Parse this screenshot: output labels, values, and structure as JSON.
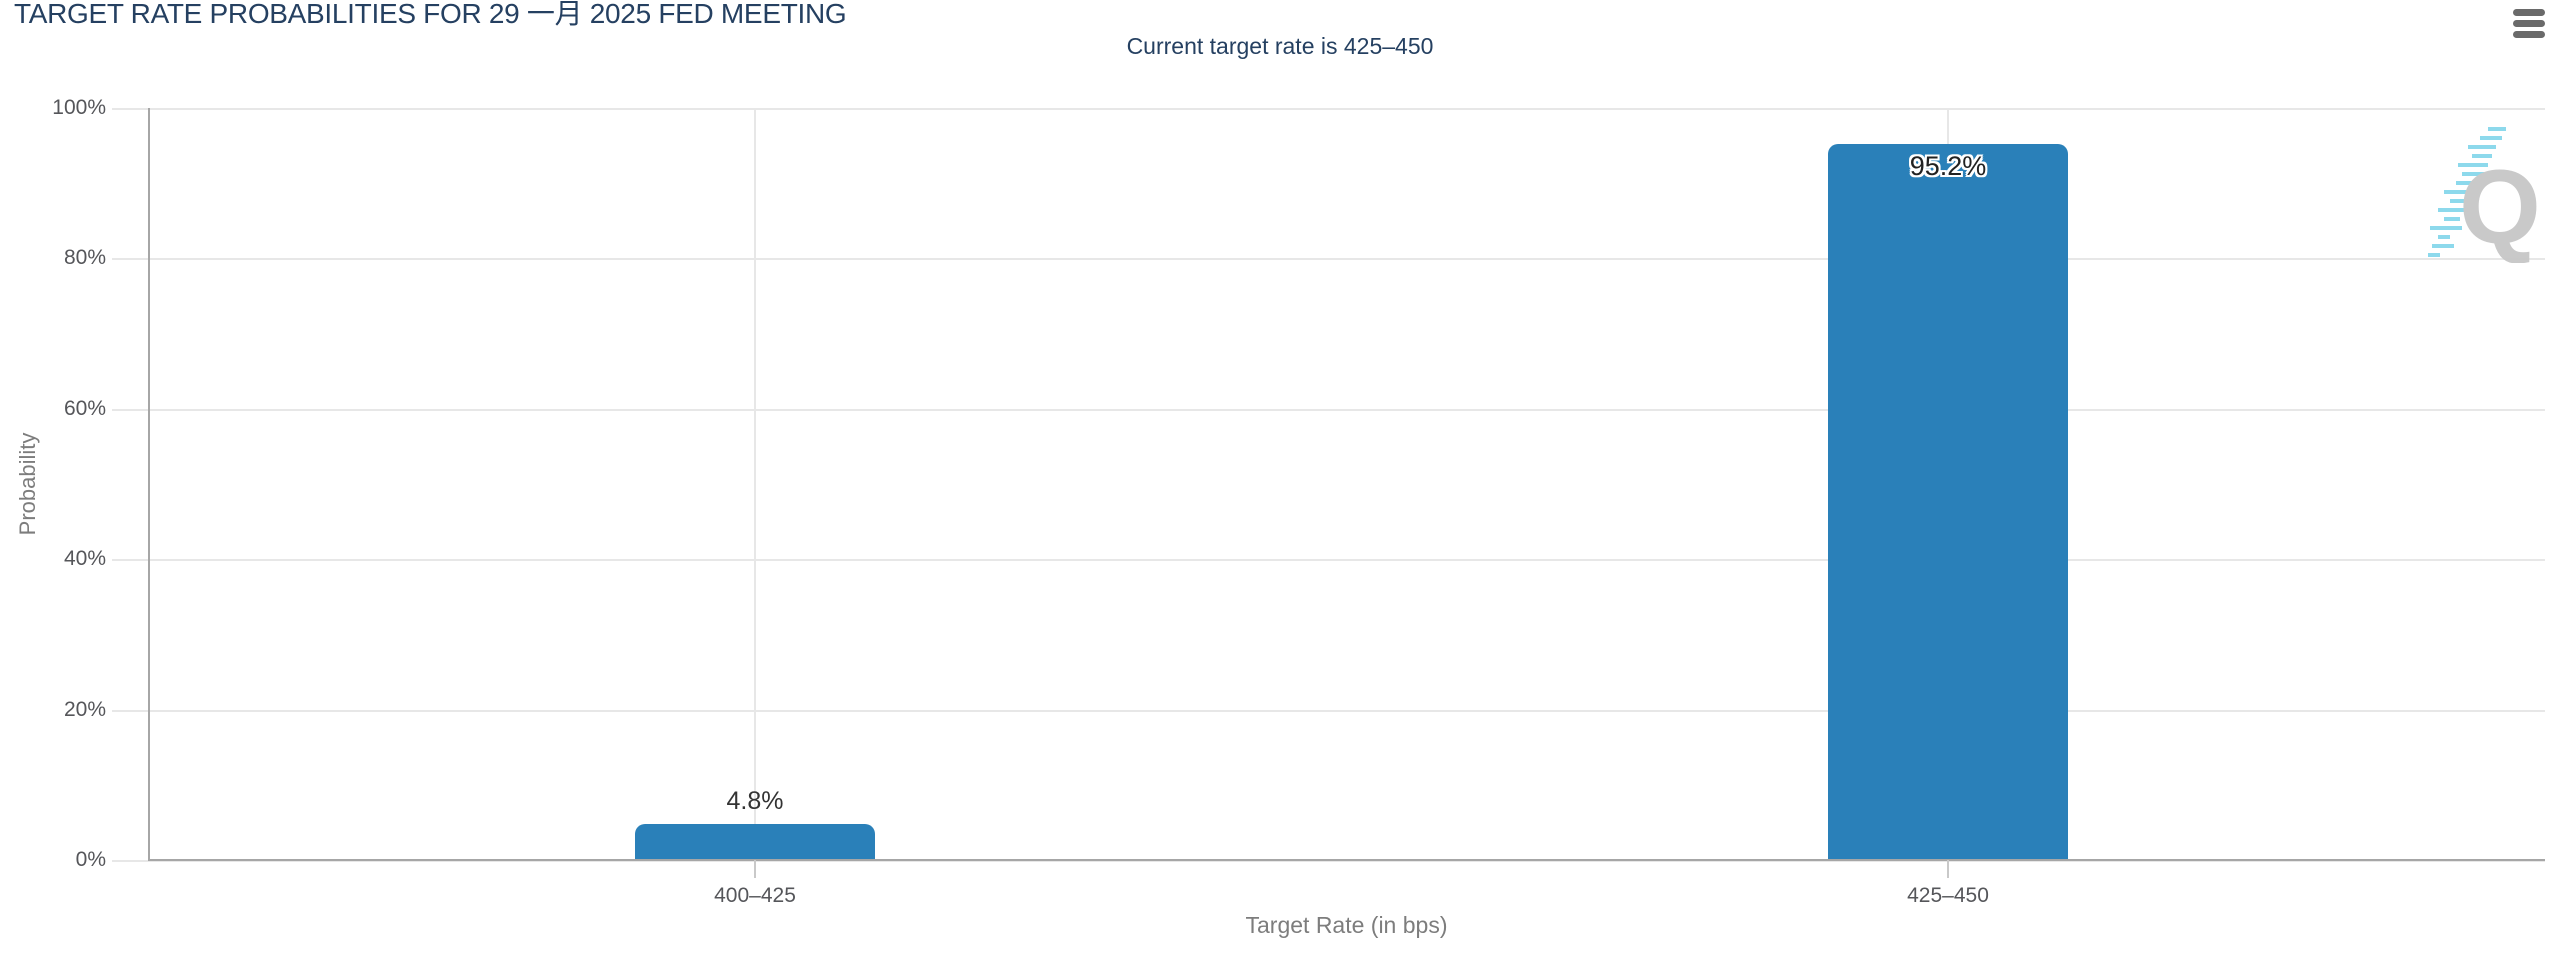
{
  "header": {
    "title": "TARGET RATE PROBABILITIES FOR 29 一月 2025 FED MEETING"
  },
  "menu": {
    "icon": "hamburger-menu-icon"
  },
  "chart_data": {
    "type": "bar",
    "title": "Current target rate is 425–450",
    "categories": [
      "400–425",
      "425–450"
    ],
    "values": [
      4.8,
      95.2
    ],
    "value_labels": [
      "4.8%",
      "95.2%"
    ],
    "xlabel": "Target Rate (in bps)",
    "ylabel": "Probability",
    "ylim": [
      0,
      100
    ],
    "ytick_labels": [
      "100%",
      "80%",
      "60%",
      "40%",
      "20%",
      "0%"
    ],
    "grid": "horizontal lines every 20%, vertical line at each category center",
    "legend": "none",
    "bar_color": "#2a80b9",
    "title_color": "#254061"
  },
  "watermark": {
    "letter": "Q"
  }
}
